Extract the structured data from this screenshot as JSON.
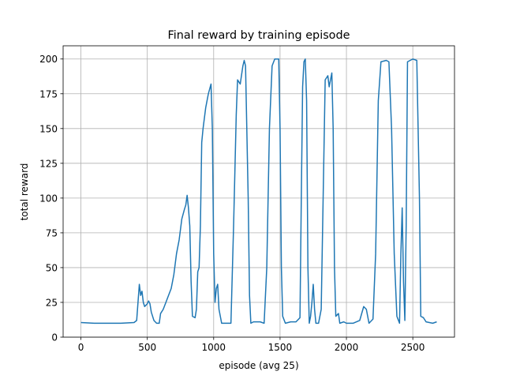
{
  "chart_data": {
    "type": "line",
    "title": "Final reward by training episode",
    "x_label": "episode (avg 25)",
    "y_label": "total reward",
    "color": "#1f77b4",
    "grid": true,
    "xlim": [
      -134,
      2814
    ],
    "ylim": [
      0,
      209.5
    ],
    "xticks": [
      0,
      500,
      1000,
      1500,
      2000,
      2500
    ],
    "yticks": [
      0,
      25,
      50,
      75,
      100,
      125,
      150,
      175,
      200
    ],
    "x": [
      0,
      100,
      200,
      300,
      400,
      420,
      430,
      440,
      450,
      460,
      470,
      480,
      500,
      510,
      520,
      530,
      550,
      570,
      590,
      600,
      620,
      640,
      660,
      680,
      700,
      720,
      740,
      760,
      780,
      790,
      800,
      810,
      820,
      830,
      840,
      860,
      870,
      880,
      890,
      900,
      910,
      920,
      940,
      960,
      980,
      990,
      1000,
      1010,
      1020,
      1030,
      1040,
      1060,
      1100,
      1130,
      1150,
      1170,
      1180,
      1200,
      1220,
      1230,
      1240,
      1260,
      1270,
      1280,
      1300,
      1350,
      1380,
      1400,
      1420,
      1440,
      1460,
      1490,
      1500,
      1510,
      1520,
      1540,
      1580,
      1620,
      1650,
      1660,
      1670,
      1680,
      1690,
      1700,
      1710,
      1720,
      1730,
      1740,
      1750,
      1760,
      1770,
      1790,
      1810,
      1830,
      1840,
      1860,
      1870,
      1880,
      1890,
      1900,
      1910,
      1920,
      1940,
      1950,
      1980,
      2000,
      2050,
      2100,
      2130,
      2150,
      2170,
      2200,
      2220,
      2240,
      2260,
      2300,
      2320,
      2340,
      2360,
      2380,
      2400,
      2410,
      2420,
      2430,
      2440,
      2450,
      2460,
      2500,
      2530,
      2550,
      2560,
      2580,
      2600,
      2650,
      2680
    ],
    "values": [
      10.5,
      10,
      10,
      10,
      10.5,
      12,
      25,
      38,
      30,
      33,
      25,
      22,
      24,
      26,
      24,
      18,
      12,
      10,
      10,
      17,
      20,
      25,
      30,
      35,
      45,
      60,
      70,
      85,
      92,
      95,
      102,
      93,
      80,
      40,
      15,
      14,
      20,
      47,
      50,
      80,
      140,
      150,
      165,
      175,
      182,
      150,
      60,
      25,
      35,
      38,
      20,
      10,
      10,
      10,
      80,
      160,
      185,
      182,
      195,
      199,
      195,
      100,
      30,
      10,
      11,
      11,
      10,
      50,
      150,
      195,
      200,
      200,
      150,
      50,
      15,
      10,
      11,
      11,
      14,
      100,
      180,
      198,
      200,
      170,
      50,
      10,
      15,
      25,
      38,
      20,
      10,
      10,
      20,
      130,
      185,
      188,
      180,
      185,
      190,
      150,
      50,
      15,
      17,
      10,
      11,
      10,
      10,
      12,
      22,
      20,
      10,
      13,
      60,
      170,
      198,
      199,
      198,
      150,
      60,
      15,
      10,
      60,
      93,
      40,
      12,
      80,
      198,
      200,
      199,
      100,
      15,
      14,
      11,
      10,
      11
    ]
  }
}
